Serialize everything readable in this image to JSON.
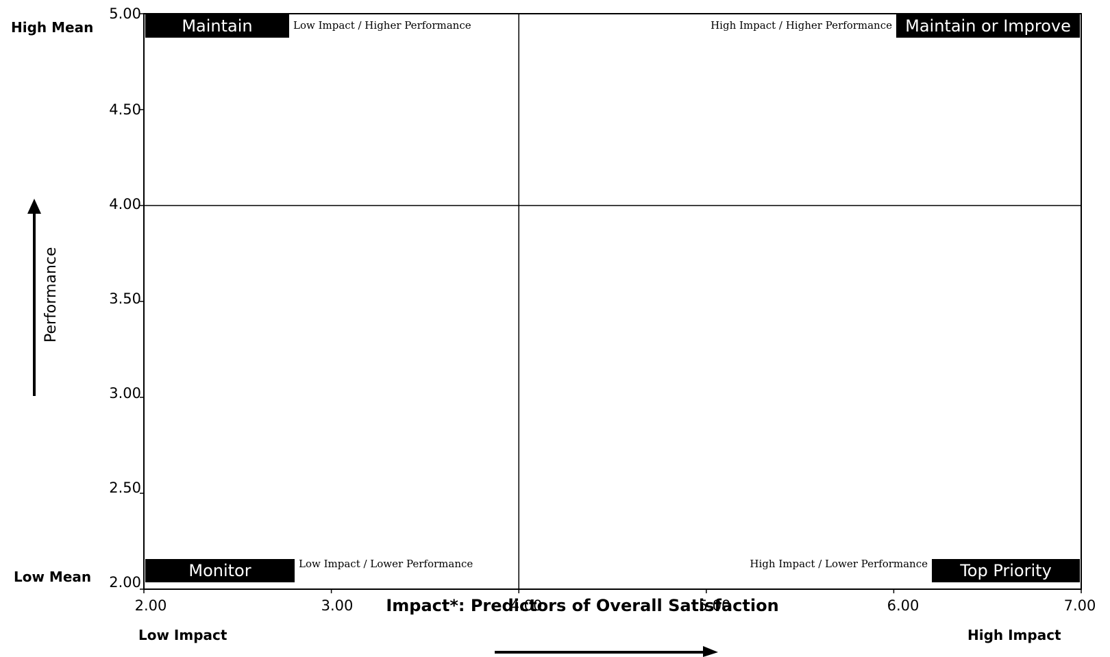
{
  "chart_data": {
    "type": "scatter",
    "xlabel": "Impact*: Predictors of Overall Satisfaction",
    "ylabel": "Performance",
    "xlim": [
      2.0,
      7.0
    ],
    "ylim": [
      2.0,
      5.0
    ],
    "x_ticks": [
      "2.00",
      "3.00",
      "4.00",
      "5.00",
      "6.00",
      "7.00"
    ],
    "y_ticks": [
      "5.00",
      "4.50",
      "4.00",
      "3.50",
      "3.00",
      "2.50",
      "2.00"
    ],
    "x_divider": 4.0,
    "y_divider": 4.0,
    "side_labels": {
      "high_mean": "High Mean",
      "low_mean": "Low Mean",
      "low_impact": "Low Impact",
      "high_impact": "High Impact"
    },
    "quadrants": {
      "top_left": {
        "label": "Maintain",
        "sub": "Low Impact / Higher Performance"
      },
      "top_right": {
        "label": "Maintain or Improve",
        "sub": "High Impact / Higher Performance"
      },
      "bottom_left": {
        "label": "Monitor",
        "sub": "Low Impact / Lower Performance"
      },
      "bottom_right": {
        "label": "Top Priority",
        "sub": "High Impact / Lower Performance"
      }
    },
    "points": [],
    "grid": false
  }
}
